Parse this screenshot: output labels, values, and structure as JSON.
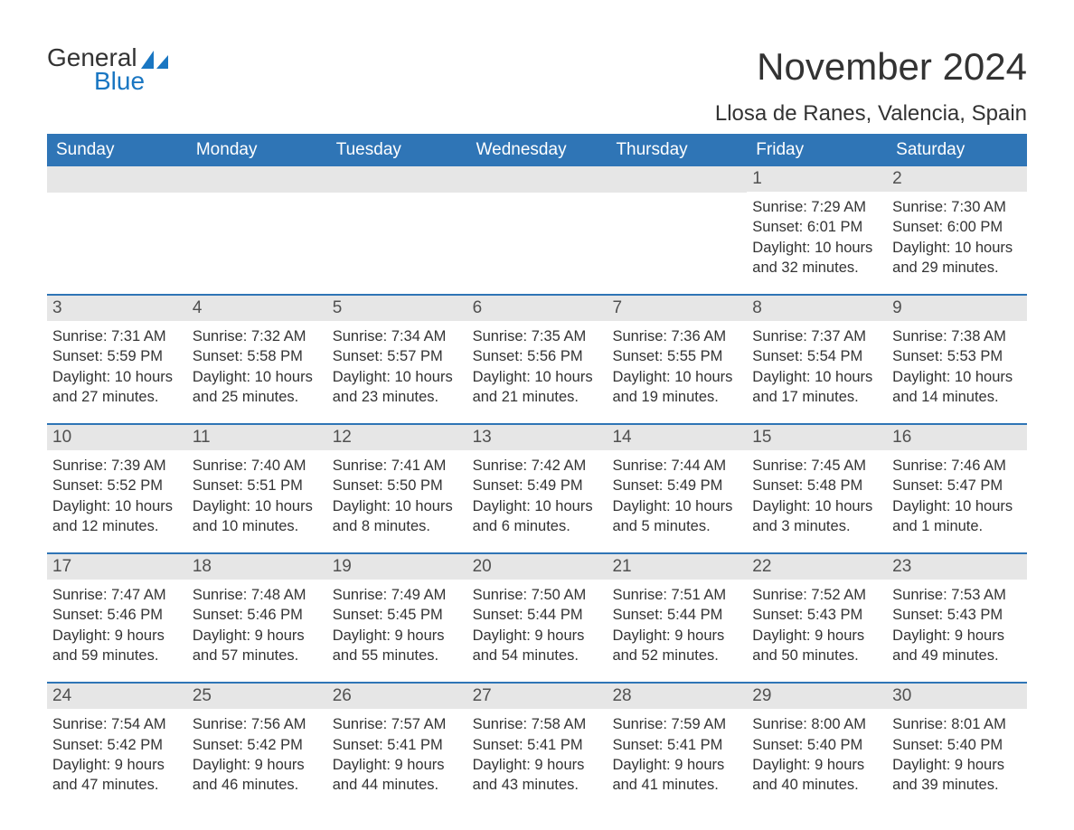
{
  "brand": {
    "word1": "General",
    "word2": "Blue"
  },
  "title": "November 2024",
  "location": "Llosa de Ranes, Valencia, Spain",
  "colors": {
    "header_bg": "#2f75b6",
    "header_text": "#ffffff",
    "daynum_bg": "#e6e6e6",
    "brand_blue": "#1976c2",
    "text": "#333333"
  },
  "day_headers": [
    "Sunday",
    "Monday",
    "Tuesday",
    "Wednesday",
    "Thursday",
    "Friday",
    "Saturday"
  ],
  "weeks": [
    [
      null,
      null,
      null,
      null,
      null,
      {
        "n": "1",
        "sunrise": "7:29 AM",
        "sunset": "6:01 PM",
        "daylight_l1": "Daylight: 10 hours",
        "daylight_l2": "and 32 minutes."
      },
      {
        "n": "2",
        "sunrise": "7:30 AM",
        "sunset": "6:00 PM",
        "daylight_l1": "Daylight: 10 hours",
        "daylight_l2": "and 29 minutes."
      }
    ],
    [
      {
        "n": "3",
        "sunrise": "7:31 AM",
        "sunset": "5:59 PM",
        "daylight_l1": "Daylight: 10 hours",
        "daylight_l2": "and 27 minutes."
      },
      {
        "n": "4",
        "sunrise": "7:32 AM",
        "sunset": "5:58 PM",
        "daylight_l1": "Daylight: 10 hours",
        "daylight_l2": "and 25 minutes."
      },
      {
        "n": "5",
        "sunrise": "7:34 AM",
        "sunset": "5:57 PM",
        "daylight_l1": "Daylight: 10 hours",
        "daylight_l2": "and 23 minutes."
      },
      {
        "n": "6",
        "sunrise": "7:35 AM",
        "sunset": "5:56 PM",
        "daylight_l1": "Daylight: 10 hours",
        "daylight_l2": "and 21 minutes."
      },
      {
        "n": "7",
        "sunrise": "7:36 AM",
        "sunset": "5:55 PM",
        "daylight_l1": "Daylight: 10 hours",
        "daylight_l2": "and 19 minutes."
      },
      {
        "n": "8",
        "sunrise": "7:37 AM",
        "sunset": "5:54 PM",
        "daylight_l1": "Daylight: 10 hours",
        "daylight_l2": "and 17 minutes."
      },
      {
        "n": "9",
        "sunrise": "7:38 AM",
        "sunset": "5:53 PM",
        "daylight_l1": "Daylight: 10 hours",
        "daylight_l2": "and 14 minutes."
      }
    ],
    [
      {
        "n": "10",
        "sunrise": "7:39 AM",
        "sunset": "5:52 PM",
        "daylight_l1": "Daylight: 10 hours",
        "daylight_l2": "and 12 minutes."
      },
      {
        "n": "11",
        "sunrise": "7:40 AM",
        "sunset": "5:51 PM",
        "daylight_l1": "Daylight: 10 hours",
        "daylight_l2": "and 10 minutes."
      },
      {
        "n": "12",
        "sunrise": "7:41 AM",
        "sunset": "5:50 PM",
        "daylight_l1": "Daylight: 10 hours",
        "daylight_l2": "and 8 minutes."
      },
      {
        "n": "13",
        "sunrise": "7:42 AM",
        "sunset": "5:49 PM",
        "daylight_l1": "Daylight: 10 hours",
        "daylight_l2": "and 6 minutes."
      },
      {
        "n": "14",
        "sunrise": "7:44 AM",
        "sunset": "5:49 PM",
        "daylight_l1": "Daylight: 10 hours",
        "daylight_l2": "and 5 minutes."
      },
      {
        "n": "15",
        "sunrise": "7:45 AM",
        "sunset": "5:48 PM",
        "daylight_l1": "Daylight: 10 hours",
        "daylight_l2": "and 3 minutes."
      },
      {
        "n": "16",
        "sunrise": "7:46 AM",
        "sunset": "5:47 PM",
        "daylight_l1": "Daylight: 10 hours",
        "daylight_l2": "and 1 minute."
      }
    ],
    [
      {
        "n": "17",
        "sunrise": "7:47 AM",
        "sunset": "5:46 PM",
        "daylight_l1": "Daylight: 9 hours",
        "daylight_l2": "and 59 minutes."
      },
      {
        "n": "18",
        "sunrise": "7:48 AM",
        "sunset": "5:46 PM",
        "daylight_l1": "Daylight: 9 hours",
        "daylight_l2": "and 57 minutes."
      },
      {
        "n": "19",
        "sunrise": "7:49 AM",
        "sunset": "5:45 PM",
        "daylight_l1": "Daylight: 9 hours",
        "daylight_l2": "and 55 minutes."
      },
      {
        "n": "20",
        "sunrise": "7:50 AM",
        "sunset": "5:44 PM",
        "daylight_l1": "Daylight: 9 hours",
        "daylight_l2": "and 54 minutes."
      },
      {
        "n": "21",
        "sunrise": "7:51 AM",
        "sunset": "5:44 PM",
        "daylight_l1": "Daylight: 9 hours",
        "daylight_l2": "and 52 minutes."
      },
      {
        "n": "22",
        "sunrise": "7:52 AM",
        "sunset": "5:43 PM",
        "daylight_l1": "Daylight: 9 hours",
        "daylight_l2": "and 50 minutes."
      },
      {
        "n": "23",
        "sunrise": "7:53 AM",
        "sunset": "5:43 PM",
        "daylight_l1": "Daylight: 9 hours",
        "daylight_l2": "and 49 minutes."
      }
    ],
    [
      {
        "n": "24",
        "sunrise": "7:54 AM",
        "sunset": "5:42 PM",
        "daylight_l1": "Daylight: 9 hours",
        "daylight_l2": "and 47 minutes."
      },
      {
        "n": "25",
        "sunrise": "7:56 AM",
        "sunset": "5:42 PM",
        "daylight_l1": "Daylight: 9 hours",
        "daylight_l2": "and 46 minutes."
      },
      {
        "n": "26",
        "sunrise": "7:57 AM",
        "sunset": "5:41 PM",
        "daylight_l1": "Daylight: 9 hours",
        "daylight_l2": "and 44 minutes."
      },
      {
        "n": "27",
        "sunrise": "7:58 AM",
        "sunset": "5:41 PM",
        "daylight_l1": "Daylight: 9 hours",
        "daylight_l2": "and 43 minutes."
      },
      {
        "n": "28",
        "sunrise": "7:59 AM",
        "sunset": "5:41 PM",
        "daylight_l1": "Daylight: 9 hours",
        "daylight_l2": "and 41 minutes."
      },
      {
        "n": "29",
        "sunrise": "8:00 AM",
        "sunset": "5:40 PM",
        "daylight_l1": "Daylight: 9 hours",
        "daylight_l2": "and 40 minutes."
      },
      {
        "n": "30",
        "sunrise": "8:01 AM",
        "sunset": "5:40 PM",
        "daylight_l1": "Daylight: 9 hours",
        "daylight_l2": "and 39 minutes."
      }
    ]
  ],
  "labels": {
    "sunrise_prefix": "Sunrise: ",
    "sunset_prefix": "Sunset: "
  }
}
